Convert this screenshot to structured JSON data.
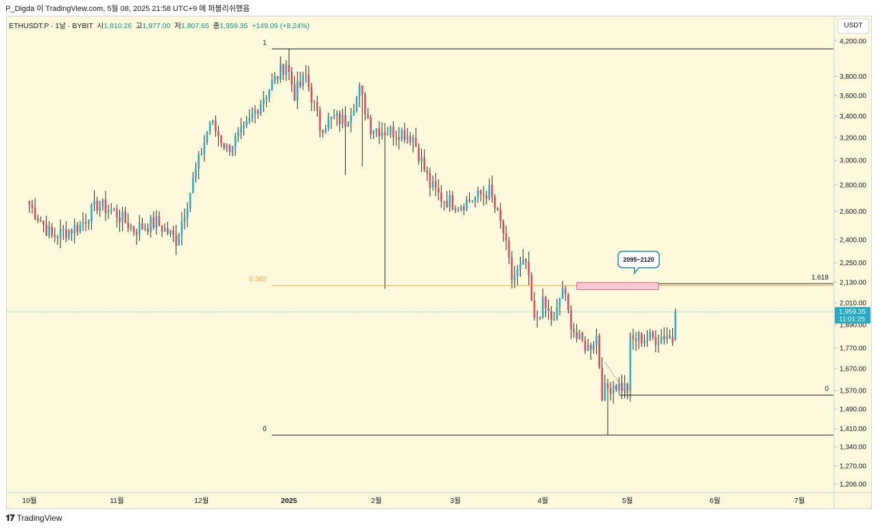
{
  "header": {
    "attribution": "P_Digda 이 TradingView.com, 5월 08, 2025 21:58 UTC+9 에 퍼블리쉬했음"
  },
  "legend": {
    "symbol": "ETHUSDT.P · 1날 · BYBIT",
    "open_label": "시",
    "open": "1,810.26",
    "high_label": "고",
    "high": "1,977.00",
    "low_label": "저",
    "low": "1,807.65",
    "close_label": "종",
    "close": "1,959.35",
    "change": "+149.09 (+8.24%)"
  },
  "price_axis": {
    "unit": "USDT",
    "current_price": "1,959.35",
    "countdown": "11:01:25"
  },
  "footer": {
    "brand": "TradingView"
  },
  "colors": {
    "up": "#26a9c4",
    "down": "#e0465a",
    "background": "#fdf9dc",
    "fib_orange": "#f2a93b",
    "zone_fill": "#f8c9d4",
    "zone_border": "#e0465a",
    "callout": "#1a8fa0"
  },
  "chart_data": {
    "type": "candlestick",
    "symbol": "ETHUSDT.P",
    "interval": "1날",
    "y_scale": "log",
    "ylim": [
      1180,
      4500
    ],
    "y_ticks": [
      "4,200.00",
      "3,800.00",
      "3,600.00",
      "3,400.00",
      "3,200.00",
      "3,000.00",
      "2,800.00",
      "2,600.00",
      "2,400.00",
      "2,250.00",
      "2,130.00",
      "2,010.00",
      "1,890.00",
      "1,770.00",
      "1,670.00",
      "1,570.00",
      "1,490.00",
      "1,410.00",
      "1,340.00",
      "1,270.00",
      "1,206.00"
    ],
    "x_ticks": [
      "10월",
      "11월",
      "12월",
      "2025",
      "2월",
      "3월",
      "4월",
      "5월",
      "6월",
      "7월"
    ],
    "x_range_days": [
      -8,
      285
    ],
    "x_tick_days": [
      0,
      31,
      61,
      92,
      123,
      151,
      182,
      212,
      243,
      273
    ],
    "anchors": [
      [
        0,
        2650
      ],
      [
        8,
        2420
      ],
      [
        18,
        2500
      ],
      [
        24,
        2650
      ],
      [
        30,
        2600
      ],
      [
        37,
        2470
      ],
      [
        45,
        2520
      ],
      [
        52,
        2400
      ],
      [
        57,
        2750
      ],
      [
        64,
        3350
      ],
      [
        70,
        3100
      ],
      [
        76,
        3250
      ],
      [
        81,
        3500
      ],
      [
        86,
        3720
      ],
      [
        91,
        3950
      ],
      [
        94,
        3620
      ],
      [
        98,
        3800
      ],
      [
        103,
        3300
      ],
      [
        108,
        3380
      ],
      [
        112,
        3350
      ],
      [
        117,
        3650
      ],
      [
        121,
        3300
      ],
      [
        126,
        3260
      ],
      [
        132,
        3250
      ],
      [
        136,
        3200
      ],
      [
        142,
        2800
      ],
      [
        146,
        2700
      ],
      [
        152,
        2650
      ],
      [
        158,
        2700
      ],
      [
        163,
        2750
      ],
      [
        168,
        2450
      ],
      [
        171,
        2150
      ],
      [
        176,
        2250
      ],
      [
        179,
        1900
      ],
      [
        182,
        2000
      ],
      [
        186,
        1900
      ],
      [
        189,
        2100
      ],
      [
        191,
        1950
      ],
      [
        194,
        1820
      ],
      [
        198,
        1770
      ],
      [
        201,
        1830
      ],
      [
        203,
        1560
      ],
      [
        207,
        1600
      ],
      [
        212,
        1580
      ],
      [
        213,
        1800
      ],
      [
        216,
        1820
      ],
      [
        222,
        1820
      ],
      [
        226,
        1840
      ],
      [
        228,
        1810
      ],
      [
        229,
        1959
      ]
    ],
    "last_candle": {
      "open": 1810.26,
      "high": 1977.0,
      "low": 1807.65,
      "close": 1959.35
    },
    "fib_lines": [
      {
        "label": "1",
        "value": 4107,
        "from_day": 86,
        "to_day": 285,
        "color": "#131722"
      },
      {
        "label": "0.382",
        "value": 2110,
        "from_day": 86,
        "to_day": 285,
        "color": "#f2a93b"
      },
      {
        "label": "0",
        "value": 1385,
        "from_day": 86,
        "to_day": 285,
        "color": "#131722"
      },
      {
        "label": "0",
        "value": 1550,
        "from_day": 209,
        "to_day": 285,
        "color": "#131722"
      },
      {
        "label": "1.618",
        "value": 2121,
        "from_day": 223,
        "to_day": 285,
        "color": "#131722"
      }
    ],
    "zone": {
      "low": 2095,
      "high": 2120,
      "from_day": 194,
      "to_day": 223
    },
    "callout": {
      "text": "2095~2120",
      "day": 215,
      "price": 2270
    },
    "current_price_line": 1959.35
  }
}
